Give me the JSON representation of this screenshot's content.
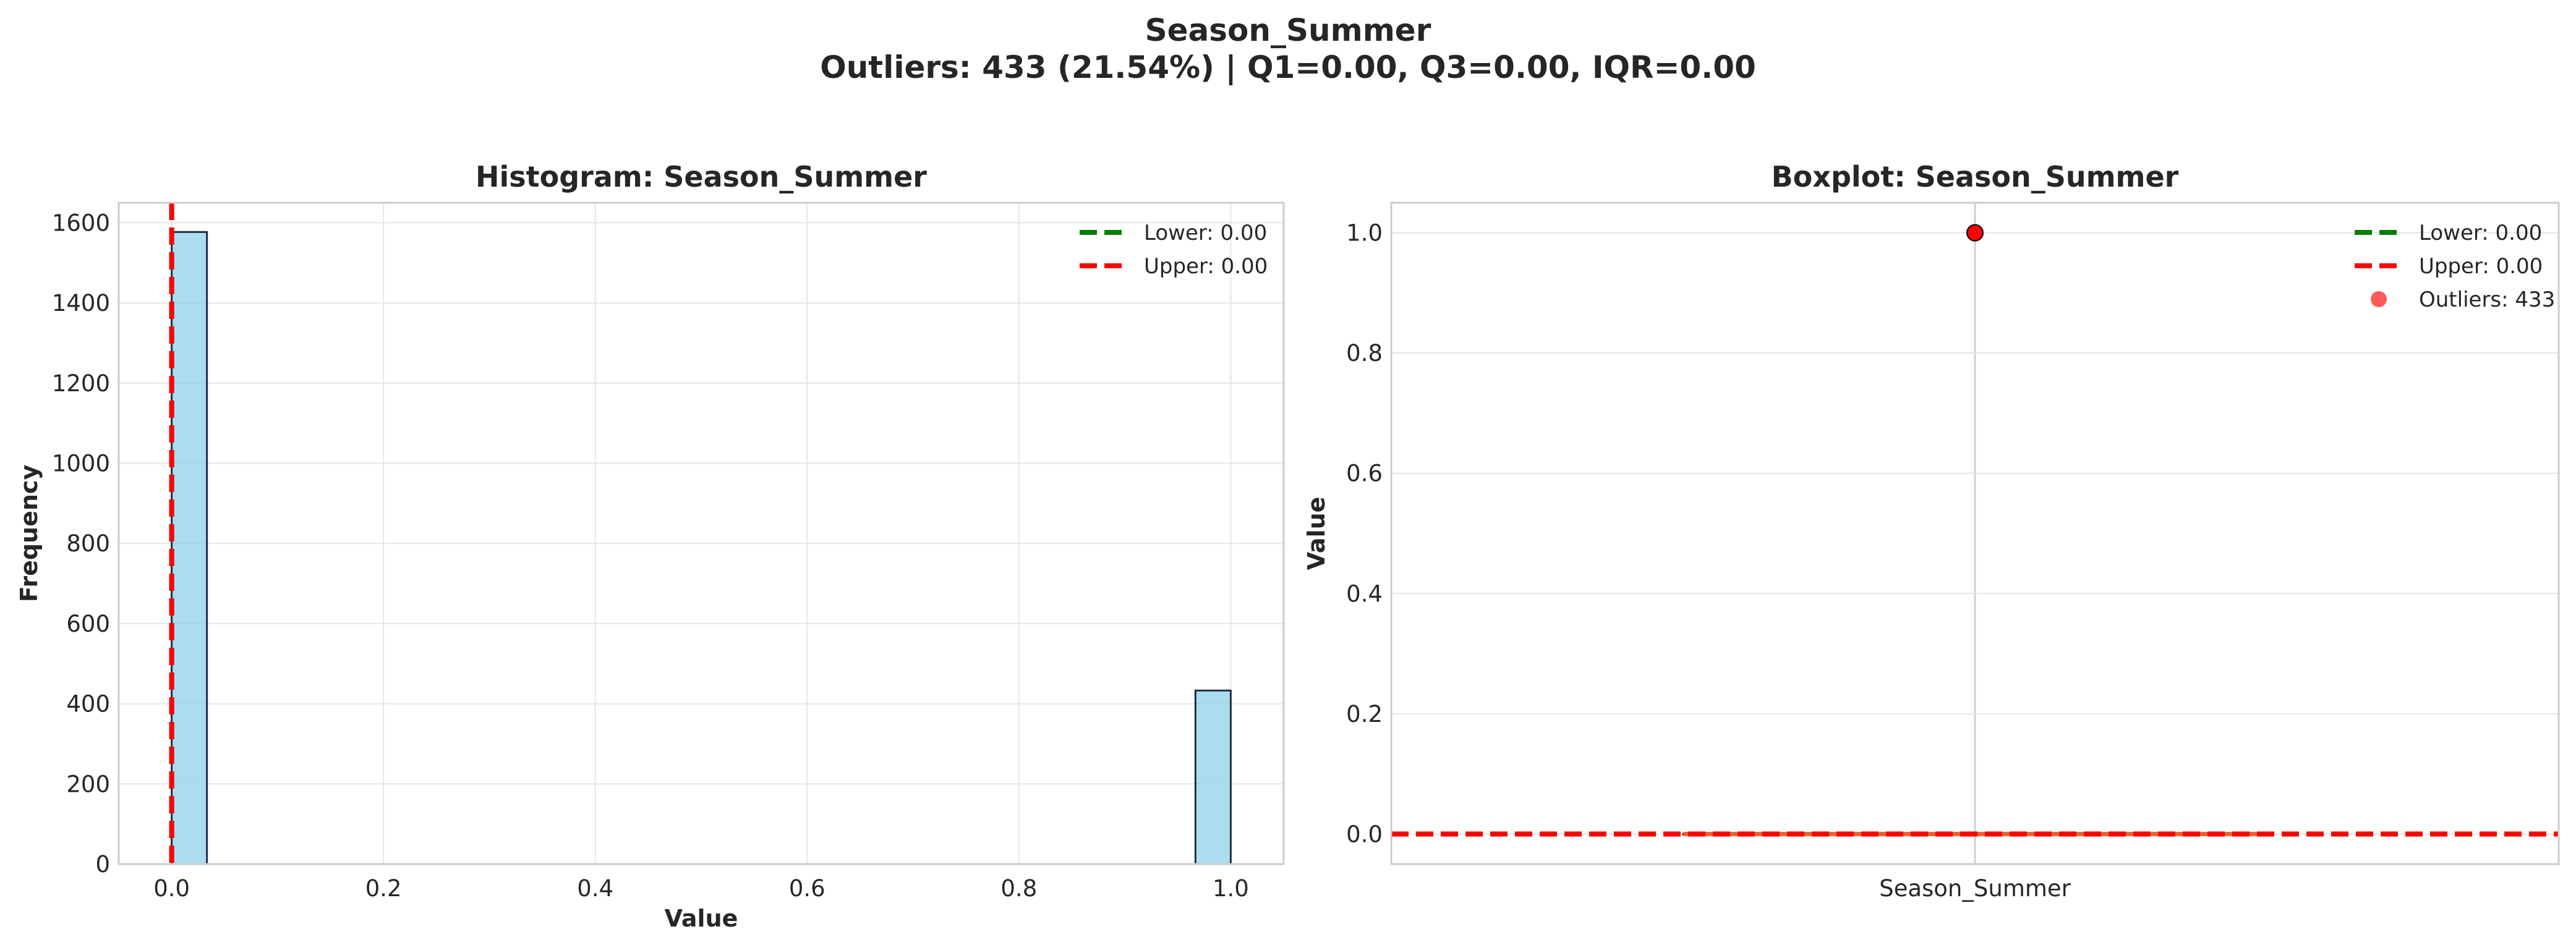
{
  "figure": {
    "title": "Season_Summer",
    "subtitle": "Outliers: 433 (21.54%) | Q1=0.00, Q3=0.00, IQR=0.00"
  },
  "colors": {
    "bar_fill": "#87CEEB",
    "bar_edge": "#1f2f3f",
    "lower_line": "#008000",
    "upper_line": "#ff0000",
    "outlier": "#ff0000",
    "median": "#e8642c",
    "grid": "#e6e6e6",
    "spine": "#cccccc"
  },
  "chart_data": [
    {
      "type": "bar",
      "subtype": "histogram",
      "title": "Histogram: Season_Summer",
      "xlabel": "Value",
      "ylabel": "Frequency",
      "xlim": [
        -0.05,
        1.05
      ],
      "ylim": [
        0,
        1650
      ],
      "xticks": [
        0.0,
        0.2,
        0.4,
        0.6,
        0.8,
        1.0
      ],
      "xtick_labels": [
        "0.0",
        "0.2",
        "0.4",
        "0.6",
        "0.8",
        "1.0"
      ],
      "yticks": [
        0,
        200,
        400,
        600,
        800,
        1000,
        1200,
        1400,
        1600
      ],
      "ytick_labels": [
        "0",
        "200",
        "400",
        "600",
        "800",
        "1000",
        "1200",
        "1400",
        "1600"
      ],
      "bins": [
        {
          "x0": 0.0,
          "x1": 0.0333,
          "count": 1577
        },
        {
          "x0": 0.9667,
          "x1": 1.0,
          "count": 433
        }
      ],
      "reference_lines": [
        {
          "name": "Lower: 0.00",
          "value": 0.0,
          "color": "#008000",
          "style": "dashed"
        },
        {
          "name": "Upper: 0.00",
          "value": 0.0,
          "color": "#ff0000",
          "style": "dashed"
        }
      ],
      "legend": [
        "Lower: 0.00",
        "Upper: 0.00"
      ],
      "legend_position": "upper-right",
      "grid": true
    },
    {
      "type": "box",
      "title": "Boxplot: Season_Summer",
      "xlabel": "",
      "ylabel": "Value",
      "categories": [
        "Season_Summer"
      ],
      "ylim": [
        -0.05,
        1.05
      ],
      "yticks": [
        0.0,
        0.2,
        0.4,
        0.6,
        0.8,
        1.0
      ],
      "ytick_labels": [
        "0.0",
        "0.2",
        "0.4",
        "0.6",
        "0.8",
        "1.0"
      ],
      "box": {
        "q1": 0.0,
        "median": 0.0,
        "q3": 0.0,
        "whisker_low": 0.0,
        "whisker_high": 0.0
      },
      "outliers": [
        1.0
      ],
      "reference_lines": [
        {
          "name": "Lower: 0.00",
          "value": 0.0,
          "color": "#008000",
          "style": "dashed"
        },
        {
          "name": "Upper: 0.00",
          "value": 0.0,
          "color": "#ff0000",
          "style": "dashed"
        }
      ],
      "legend": [
        "Lower: 0.00",
        "Upper: 0.00",
        "Outliers: 433"
      ],
      "legend_position": "upper-right",
      "grid": true
    }
  ]
}
